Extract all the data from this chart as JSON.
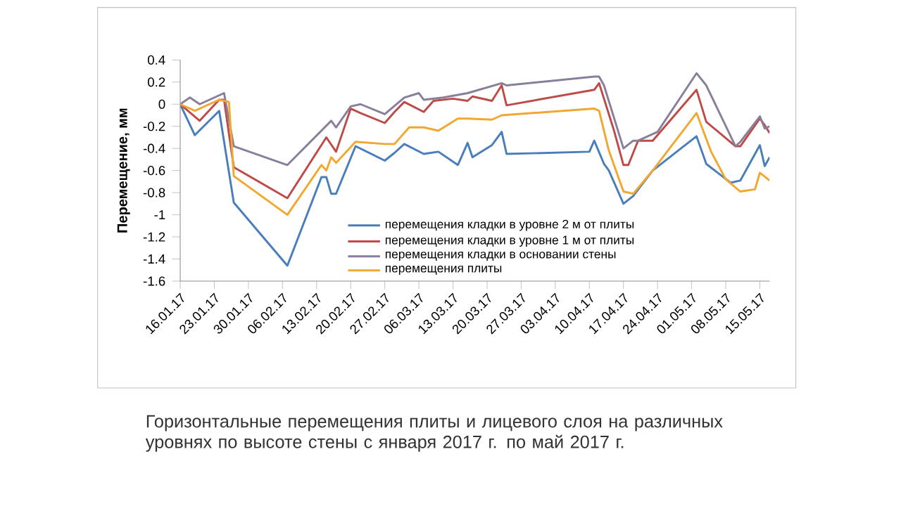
{
  "chart_data": {
    "type": "line",
    "ylabel": "Перемещение, мм",
    "annotations": [
      "Горизонтальные перемещения плиты и лицевого слоя на различных уровнях по высоте стены с января 2017 г. по май 2017 г."
    ],
    "xlim": [
      "2017-01-16",
      "2017-05-17"
    ],
    "xticks": [
      {
        "value": "2017-01-16",
        "label": "16.01.17"
      },
      {
        "value": "2017-01-23",
        "label": "23.01.17"
      },
      {
        "value": "2017-01-30",
        "label": "30.01.17"
      },
      {
        "value": "2017-02-06",
        "label": "06.02.17"
      },
      {
        "value": "2017-02-13",
        "label": "13.02.17"
      },
      {
        "value": "2017-02-20",
        "label": "20.02.17"
      },
      {
        "value": "2017-02-27",
        "label": "27.02.17"
      },
      {
        "value": "2017-03-06",
        "label": "06.03.17"
      },
      {
        "value": "2017-03-13",
        "label": "13.03.17"
      },
      {
        "value": "2017-03-20",
        "label": "20.03.17"
      },
      {
        "value": "2017-03-27",
        "label": "27.03.17"
      },
      {
        "value": "2017-04-03",
        "label": "03.04.17"
      },
      {
        "value": "2017-04-10",
        "label": "10.04.17"
      },
      {
        "value": "2017-04-17",
        "label": "17.04.17"
      },
      {
        "value": "2017-04-24",
        "label": "24.04.17"
      },
      {
        "value": "2017-05-01",
        "label": "01.05.17"
      },
      {
        "value": "2017-05-08",
        "label": "08.05.17"
      },
      {
        "value": "2017-05-15",
        "label": "15.05.17"
      }
    ],
    "ylim": [
      -1.6,
      0.4
    ],
    "yticks": [
      -1.6,
      -1.4,
      -1.2,
      -1,
      -0.8,
      -0.6,
      -0.4,
      -0.2,
      0,
      0.2,
      0.4
    ],
    "legend": "bottom",
    "marker": "none",
    "line_style": "solid",
    "series": [
      {
        "name": "перемещения кладки в уровне 2 м от плиты",
        "color": "#4a7ebb",
        "x": [
          "2017-01-16",
          "2017-01-19",
          "2017-01-24",
          "2017-01-27",
          "2017-02-07",
          "2017-02-14",
          "2017-02-15",
          "2017-02-16",
          "2017-02-17",
          "2017-02-21",
          "2017-02-27",
          "2017-03-01",
          "2017-03-03",
          "2017-03-07",
          "2017-03-10",
          "2017-03-14",
          "2017-03-16",
          "2017-03-17",
          "2017-03-21",
          "2017-03-23",
          "2017-03-24",
          "2017-04-10",
          "2017-04-11",
          "2017-04-13",
          "2017-04-14",
          "2017-04-17",
          "2017-04-19",
          "2017-04-23",
          "2017-05-02",
          "2017-05-04",
          "2017-05-09",
          "2017-05-11",
          "2017-05-15",
          "2017-05-16",
          "2017-05-17"
        ],
        "values": [
          0,
          -0.28,
          -0.06,
          -0.89,
          -1.46,
          -0.66,
          -0.66,
          -0.81,
          -0.81,
          -0.38,
          -0.51,
          -0.44,
          -0.36,
          -0.45,
          -0.43,
          -0.55,
          -0.35,
          -0.48,
          -0.37,
          -0.25,
          -0.45,
          -0.43,
          -0.33,
          -0.54,
          -0.6,
          -0.9,
          -0.83,
          -0.6,
          -0.29,
          -0.54,
          -0.71,
          -0.69,
          -0.37,
          -0.56,
          -0.48
        ]
      },
      {
        "name": "перемещения кладки в уровне 1 м от плиты",
        "color": "#be4b48",
        "x": [
          "2017-01-16",
          "2017-01-20",
          "2017-01-24",
          "2017-01-25",
          "2017-01-27",
          "2017-02-07",
          "2017-02-15",
          "2017-02-17",
          "2017-02-20",
          "2017-02-22",
          "2017-02-27",
          "2017-03-01",
          "2017-03-03",
          "2017-03-07",
          "2017-03-09",
          "2017-03-13",
          "2017-03-16",
          "2017-03-17",
          "2017-03-21",
          "2017-03-23",
          "2017-03-24",
          "2017-04-11",
          "2017-04-12",
          "2017-04-15",
          "2017-04-17",
          "2017-04-18",
          "2017-04-20",
          "2017-04-23",
          "2017-05-02",
          "2017-05-04",
          "2017-05-10",
          "2017-05-11",
          "2017-05-15",
          "2017-05-16",
          "2017-05-17"
        ],
        "values": [
          0,
          -0.15,
          0.04,
          0.04,
          -0.57,
          -0.85,
          -0.3,
          -0.43,
          -0.04,
          -0.08,
          -0.17,
          -0.07,
          0.02,
          -0.07,
          0.03,
          0.05,
          0.03,
          0.07,
          0.03,
          0.17,
          -0.01,
          0.13,
          0.19,
          -0.23,
          -0.55,
          -0.55,
          -0.33,
          -0.33,
          0.13,
          -0.16,
          -0.38,
          -0.38,
          -0.13,
          -0.19,
          -0.26
        ]
      },
      {
        "name": "перемещения кладки в основании стены",
        "color": "#8a7f9a",
        "x": [
          "2017-01-16",
          "2017-01-18",
          "2017-01-20",
          "2017-01-25",
          "2017-01-27",
          "2017-02-07",
          "2017-02-16",
          "2017-02-17",
          "2017-02-20",
          "2017-02-22",
          "2017-02-27",
          "2017-03-03",
          "2017-03-06",
          "2017-03-07",
          "2017-03-11",
          "2017-03-16",
          "2017-03-23",
          "2017-03-24",
          "2017-04-11",
          "2017-04-12",
          "2017-04-13",
          "2017-04-17",
          "2017-04-19",
          "2017-04-20",
          "2017-04-24",
          "2017-05-02",
          "2017-05-04",
          "2017-05-10",
          "2017-05-11",
          "2017-05-15",
          "2017-05-16",
          "2017-05-17"
        ],
        "values": [
          0,
          0.06,
          0,
          0.1,
          -0.38,
          -0.55,
          -0.15,
          -0.21,
          -0.02,
          0,
          -0.09,
          0.06,
          0.1,
          0.04,
          0.06,
          0.1,
          0.19,
          0.17,
          0.25,
          0.25,
          0.17,
          -0.4,
          -0.33,
          -0.33,
          -0.25,
          0.28,
          0.17,
          -0.38,
          -0.34,
          -0.11,
          -0.22,
          -0.2
        ]
      },
      {
        "name": "перемещения плиты",
        "color": "#f0a830",
        "x": [
          "2017-01-16",
          "2017-01-19",
          "2017-01-24",
          "2017-01-26",
          "2017-01-27",
          "2017-02-07",
          "2017-02-14",
          "2017-02-15",
          "2017-02-16",
          "2017-02-17",
          "2017-02-21",
          "2017-02-27",
          "2017-03-01",
          "2017-03-04",
          "2017-03-07",
          "2017-03-10",
          "2017-03-14",
          "2017-03-16",
          "2017-03-21",
          "2017-03-23",
          "2017-04-11",
          "2017-04-12",
          "2017-04-14",
          "2017-04-17",
          "2017-04-19",
          "2017-04-23",
          "2017-05-02",
          "2017-05-05",
          "2017-05-08",
          "2017-05-11",
          "2017-05-14",
          "2017-05-15",
          "2017-05-17"
        ],
        "values": [
          0,
          -0.06,
          0.04,
          0.02,
          -0.65,
          -1.0,
          -0.55,
          -0.6,
          -0.48,
          -0.53,
          -0.34,
          -0.36,
          -0.36,
          -0.21,
          -0.21,
          -0.24,
          -0.13,
          -0.13,
          -0.14,
          -0.1,
          -0.04,
          -0.06,
          -0.42,
          -0.79,
          -0.81,
          -0.6,
          -0.08,
          -0.43,
          -0.68,
          -0.79,
          -0.77,
          -0.62,
          -0.69
        ]
      }
    ]
  }
}
